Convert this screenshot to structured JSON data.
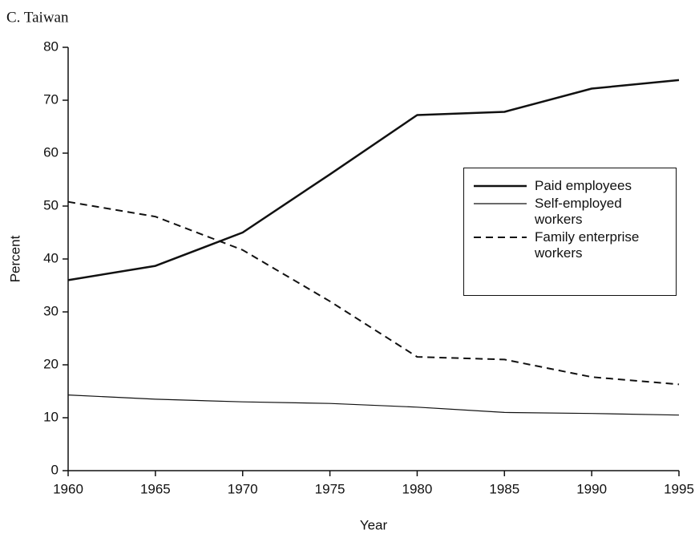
{
  "chart_data": {
    "type": "line",
    "title": "C. Taiwan",
    "x_label": "Year",
    "y_label": "Percent",
    "x": [
      1960,
      1965,
      1970,
      1975,
      1980,
      1985,
      1990,
      1995
    ],
    "xlim": [
      1960,
      1995
    ],
    "xticks": [
      1960,
      1965,
      1970,
      1975,
      1980,
      1985,
      1990,
      1995
    ],
    "ylim": [
      0,
      80
    ],
    "yticks": [
      0,
      10,
      20,
      30,
      40,
      50,
      60,
      70,
      80
    ],
    "series": [
      {
        "name": "Paid employees",
        "color": "#111111",
        "line_style": "solid",
        "line_width": 2.5,
        "values": [
          36,
          38.7,
          45,
          56,
          67.2,
          67.8,
          72.2,
          73.8
        ]
      },
      {
        "name": "Self-employed workers",
        "color": "#111111",
        "line_style": "solid",
        "line_width": 1.2,
        "values": [
          14.3,
          13.5,
          13,
          12.7,
          12,
          11,
          10.8,
          10.5
        ]
      },
      {
        "name": "Family enterprise workers",
        "color": "#111111",
        "line_style": "dashed",
        "line_width": 2,
        "values": [
          50.8,
          48,
          41.7,
          32,
          21.5,
          21,
          17.7,
          16.3
        ]
      }
    ]
  }
}
